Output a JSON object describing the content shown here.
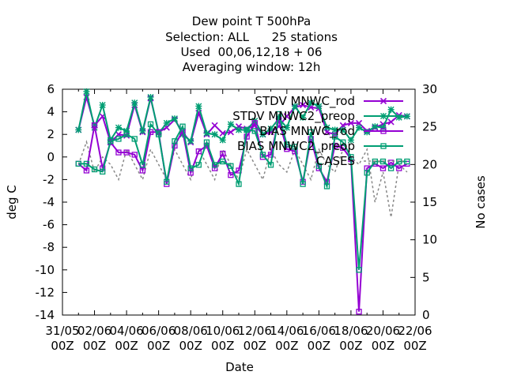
{
  "chart_data": {
    "type": "line",
    "title_lines": [
      "Dew point T 500hPa",
      "Selection: ALL      25 stations",
      "Used  00,06,12,18 + 06",
      "Averaging window: 12h"
    ],
    "xlabel": "Date",
    "ylabel": "deg C",
    "y2label": "No cases",
    "ylim": [
      -14,
      6
    ],
    "y2lim": [
      0,
      30
    ],
    "yticks": [
      "-14",
      "-12",
      "-10",
      "-8",
      "-6",
      "-4",
      "-2",
      "0",
      "2",
      "4",
      "6"
    ],
    "y2ticks": [
      "0",
      "5",
      "10",
      "15",
      "20",
      "25",
      "30"
    ],
    "xticks": [
      {
        "top": "31/05",
        "bottom": "00Z"
      },
      {
        "top": "02/06",
        "bottom": "00Z"
      },
      {
        "top": "04/06",
        "bottom": "00Z"
      },
      {
        "top": "06/06",
        "bottom": "00Z"
      },
      {
        "top": "08/06",
        "bottom": "00Z"
      },
      {
        "top": "10/06",
        "bottom": "00Z"
      },
      {
        "top": "12/06",
        "bottom": "00Z"
      },
      {
        "top": "14/06",
        "bottom": "00Z"
      },
      {
        "top": "16/06",
        "bottom": "00Z"
      },
      {
        "top": "18/06",
        "bottom": "00Z"
      },
      {
        "top": "20/06",
        "bottom": "00Z"
      },
      {
        "top": "22/06",
        "bottom": "00Z"
      }
    ],
    "x_days": [
      1,
      1.5,
      2,
      2.5,
      3,
      3.5,
      4,
      4.5,
      5,
      5.5,
      6,
      6.5,
      7,
      7.5,
      8,
      8.5,
      9,
      9.5,
      10,
      10.5,
      11,
      11.5,
      12,
      12.5,
      13,
      13.5,
      14,
      14.5,
      15,
      15.5,
      16,
      16.5,
      17,
      17.5,
      18,
      18.5,
      19,
      19.5,
      20,
      20.5,
      21,
      21.5
    ],
    "legend_position": "top-right",
    "series": [
      {
        "name": "STDV MNWC_rod",
        "color": "#9400d3",
        "marker": "x",
        "axis": "y",
        "values": [
          2.4,
          5.3,
          2.8,
          3.6,
          1.3,
          2.0,
          1.9,
          4.6,
          2.2,
          5.2,
          2.2,
          2.6,
          3.3,
          2.2,
          1.3,
          3.9,
          2.0,
          2.8,
          2.1,
          2.2,
          2.7,
          2.5,
          2.8,
          2.0,
          2.2,
          2.7,
          3.6,
          4.4,
          4.6,
          4.4,
          4.3,
          2.2,
          2.0,
          2.8,
          3.0,
          3.0,
          2.3,
          2.6,
          2.9,
          3.1,
          3.7,
          3.6
        ]
      },
      {
        "name": "STDV MNWC2_preop",
        "color": "#009e73",
        "marker": "*",
        "axis": "y",
        "values": [
          2.4,
          5.8,
          2.6,
          4.6,
          1.5,
          2.6,
          2.3,
          4.8,
          2.3,
          5.3,
          2.1,
          3.0,
          3.4,
          2.0,
          1.4,
          4.5,
          2.1,
          2.0,
          1.5,
          2.9,
          2.4,
          2.4,
          3.2,
          2.0,
          2.5,
          3.4,
          2.6,
          4.5,
          3.5,
          4.8,
          4.5,
          2.6,
          2.4,
          2.4,
          1.5,
          2.6,
          2.2,
          2.7,
          2.6,
          4.2,
          3.5,
          3.6
        ]
      },
      {
        "name": "BIAS MNWC_rod",
        "color": "#9400d3",
        "marker": "square",
        "axis": "y",
        "values": [
          -0.6,
          -1.2,
          2.8,
          -1.0,
          1.3,
          0.4,
          0.4,
          0.2,
          -1.2,
          2.2,
          2.2,
          -2.4,
          1.0,
          2.3,
          -1.4,
          0.5,
          1.0,
          -1.0,
          0.3,
          -1.6,
          -1.2,
          1.8,
          3.0,
          0.0,
          0.2,
          3.3,
          0.7,
          0.5,
          -2.2,
          1.6,
          -1.0,
          -2.2,
          1.0,
          0.8,
          -0.2,
          -13.7,
          -1.0,
          -0.6,
          -1.0,
          -0.5,
          -1.0,
          -0.6
        ]
      },
      {
        "name": "BIAS MNWC2_preop",
        "color": "#009e73",
        "marker": "square",
        "axis": "y",
        "values": [
          -0.6,
          -0.6,
          -1.1,
          -1.3,
          1.4,
          1.6,
          2.0,
          1.6,
          -0.7,
          2.9,
          2.0,
          -2.2,
          1.4,
          2.7,
          -1.0,
          -0.7,
          1.3,
          -0.7,
          -0.4,
          -0.8,
          -2.4,
          2.4,
          2.3,
          0.2,
          -0.7,
          3.8,
          1.1,
          0.9,
          -2.4,
          2.2,
          -0.8,
          -2.6,
          1.8,
          1.3,
          0.0,
          -10.0,
          -1.4,
          -0.4,
          -0.4,
          -1.0,
          -0.4,
          -0.4
        ]
      },
      {
        "name": "CASES",
        "color": "#888888",
        "marker": "none",
        "dash": true,
        "axis": "y2",
        "values": [
          20,
          23,
          19,
          21,
          20,
          18,
          22,
          20,
          18,
          22,
          20,
          18,
          22,
          20,
          18,
          22,
          20,
          18,
          22,
          20,
          18,
          22,
          20,
          18,
          22,
          20,
          19,
          22,
          20,
          18,
          22,
          20,
          19,
          22,
          21,
          20,
          22,
          15,
          19,
          13,
          20,
          19
        ]
      }
    ]
  }
}
